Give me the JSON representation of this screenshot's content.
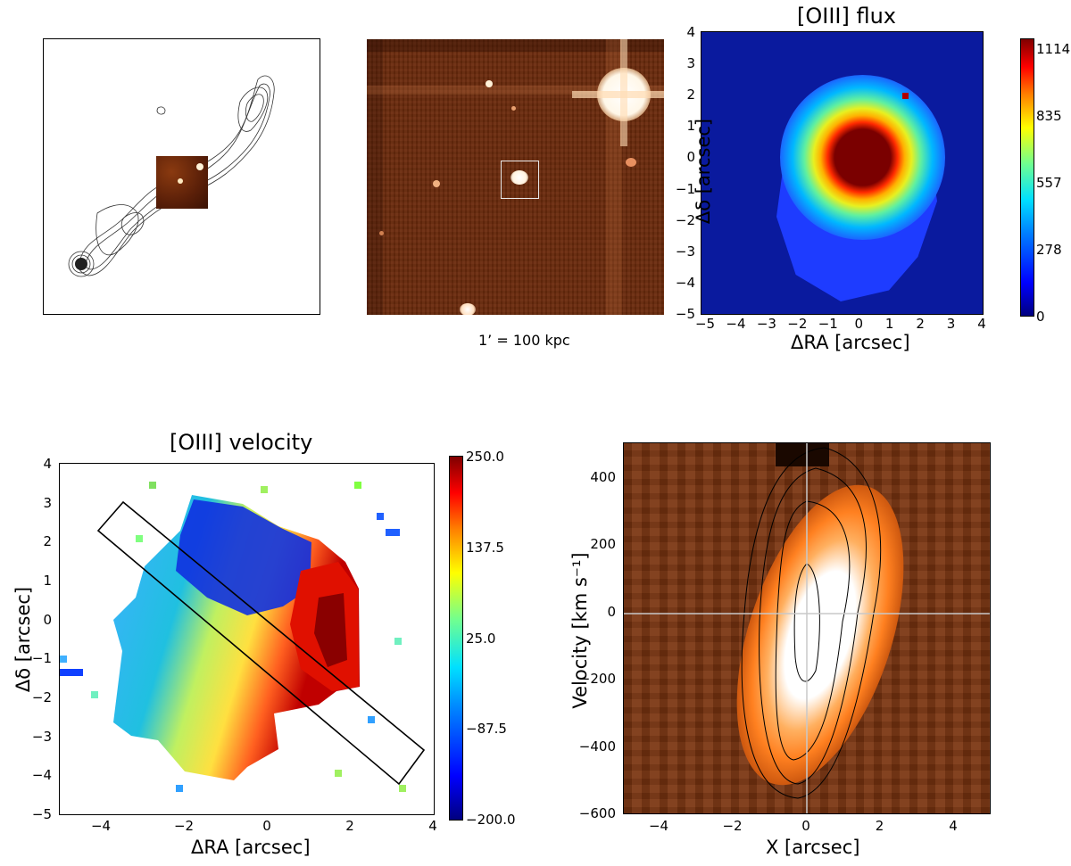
{
  "caption_scale": "1’ = 100 kpc",
  "flux_panel": {
    "title": "[OIII] flux",
    "xlabel": "ΔRA [arcsec]",
    "ylabel": "Δδ [arcsec]",
    "x_ticks": [
      "−5",
      "−4",
      "−3",
      "−2",
      "−1",
      "0",
      "1",
      "2",
      "3",
      "4"
    ],
    "y_ticks": [
      "4",
      "3",
      "2",
      "1",
      "0",
      "−1",
      "−2",
      "−3",
      "−4",
      "−5"
    ],
    "colorbar_ticks": [
      "1114",
      "835",
      "557",
      "278",
      "0"
    ]
  },
  "velocity_panel": {
    "title": "[OIII] velocity",
    "xlabel": "ΔRA [arcsec]",
    "ylabel": "Δδ [arcsec]",
    "x_ticks": [
      "−4",
      "−2",
      "0",
      "2",
      "4"
    ],
    "y_ticks": [
      "4",
      "3",
      "2",
      "1",
      "0",
      "−1",
      "−2",
      "−3",
      "−4",
      "−5"
    ],
    "colorbar_ticks": [
      "250.0",
      "137.5",
      "25.0",
      "−87.5",
      "−200.0"
    ]
  },
  "pv_panel": {
    "xlabel": "X [arcsec]",
    "ylabel": "Velocity [km s⁻¹]",
    "x_ticks": [
      "−4",
      "−2",
      "0",
      "2",
      "4"
    ],
    "y_ticks": [
      "400",
      "200",
      "0",
      "−200",
      "−400",
      "−600"
    ]
  },
  "chart_data": [
    {
      "type": "heatmap",
      "title": "[OIII] flux",
      "xlabel": "ΔRA [arcsec]",
      "ylabel": "Δδ [arcsec]",
      "xlim": [
        -5,
        4
      ],
      "ylim": [
        -5,
        4
      ],
      "colorbar": {
        "min": 0,
        "max": 1114,
        "ticks": [
          0,
          278,
          557,
          835,
          1114
        ]
      }
    },
    {
      "type": "heatmap",
      "title": "[OIII] velocity",
      "xlabel": "ΔRA [arcsec]",
      "ylabel": "Δδ [arcsec]",
      "xlim": [
        -5,
        4
      ],
      "ylim": [
        -5,
        4
      ],
      "colorbar": {
        "min": -200,
        "max": 250,
        "ticks": [
          -200,
          -87.5,
          25,
          137.5,
          250
        ]
      }
    },
    {
      "type": "heatmap",
      "title": "",
      "xlabel": "X [arcsec]",
      "ylabel": "Velocity [km s⁻¹]",
      "xlim": [
        -5,
        5
      ],
      "ylim": [
        -600,
        500
      ]
    }
  ]
}
